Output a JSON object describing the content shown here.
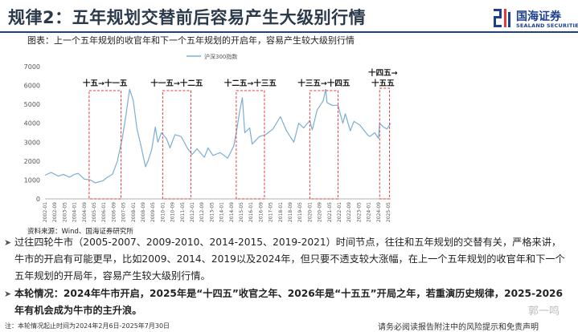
{
  "header": {
    "title": "规律2：五年规划交替前后容易产生大级别行情",
    "logo_cn": "国海证券",
    "logo_en": "SEALAND SECURITIES",
    "brand_color": "#1d3f8f"
  },
  "chart_caption": "图表：上一个五年规划的收官年和下一个五年规划的开启年，容易产生较大级别行情",
  "source": "资料来源：Wind、国海证券研究所",
  "chart_data": {
    "type": "line",
    "legend": "沪深300指数",
    "legend_position": "top-center",
    "line_color": "#7aaed6",
    "ylim": [
      0,
      7000
    ],
    "yticks": [
      "0",
      "1000",
      "2000",
      "3000",
      "4000",
      "5000",
      "6000",
      "7000"
    ],
    "xlim": [
      "2002-01",
      "2025-07"
    ],
    "xticks": [
      "2002-01",
      "2002-09",
      "2003-05",
      "2004-01",
      "2004-09",
      "2005-05",
      "2006-01",
      "2006-09",
      "2007-05",
      "2008-01",
      "2008-09",
      "2009-05",
      "2010-01",
      "2010-09",
      "2011-05",
      "2012-01",
      "2012-09",
      "2013-05",
      "2014-01",
      "2014-09",
      "2015-05",
      "2016-01",
      "2016-09",
      "2017-05",
      "2018-01",
      "2018-09",
      "2019-05",
      "2020-01",
      "2020-09",
      "2021-05",
      "2022-01",
      "2022-09",
      "2023-05",
      "2024-01",
      "2024-09",
      "2025-05"
    ],
    "grid": false,
    "series": [
      {
        "name": "沪深300指数",
        "points": [
          [
            "2002-01",
            1250
          ],
          [
            "2002-06",
            1400
          ],
          [
            "2002-12",
            1200
          ],
          [
            "2003-04",
            1300
          ],
          [
            "2003-09",
            1150
          ],
          [
            "2004-01",
            1300
          ],
          [
            "2004-04",
            1350
          ],
          [
            "2004-09",
            1050
          ],
          [
            "2005-02",
            1000
          ],
          [
            "2005-06",
            850
          ],
          [
            "2005-12",
            950
          ],
          [
            "2006-04",
            1150
          ],
          [
            "2006-08",
            1300
          ],
          [
            "2006-12",
            2000
          ],
          [
            "2007-04",
            3200
          ],
          [
            "2007-07",
            4400
          ],
          [
            "2007-10",
            5800
          ],
          [
            "2008-01",
            5200
          ],
          [
            "2008-04",
            3700
          ],
          [
            "2008-07",
            2900
          ],
          [
            "2008-11",
            1700
          ],
          [
            "2009-01",
            2000
          ],
          [
            "2009-04",
            2600
          ],
          [
            "2009-07",
            3800
          ],
          [
            "2009-09",
            3000
          ],
          [
            "2009-12",
            3500
          ],
          [
            "2010-04",
            3200
          ],
          [
            "2010-07",
            2700
          ],
          [
            "2010-11",
            3400
          ],
          [
            "2011-04",
            3300
          ],
          [
            "2011-09",
            2700
          ],
          [
            "2012-01",
            2350
          ],
          [
            "2012-05",
            2650
          ],
          [
            "2012-11",
            2200
          ],
          [
            "2013-02",
            2700
          ],
          [
            "2013-06",
            2300
          ],
          [
            "2013-12",
            2450
          ],
          [
            "2014-06",
            2150
          ],
          [
            "2014-11",
            2800
          ],
          [
            "2015-01",
            3500
          ],
          [
            "2015-04",
            4700
          ],
          [
            "2015-06",
            5350
          ],
          [
            "2015-08",
            3500
          ],
          [
            "2015-12",
            3750
          ],
          [
            "2016-02",
            2900
          ],
          [
            "2016-08",
            3300
          ],
          [
            "2017-01",
            3400
          ],
          [
            "2017-07",
            3700
          ],
          [
            "2018-01",
            4350
          ],
          [
            "2018-06",
            3600
          ],
          [
            "2018-12",
            3000
          ],
          [
            "2019-04",
            4000
          ],
          [
            "2019-08",
            3750
          ],
          [
            "2020-01",
            4150
          ],
          [
            "2020-03",
            3650
          ],
          [
            "2020-07",
            4700
          ],
          [
            "2020-12",
            5200
          ],
          [
            "2021-02",
            5800
          ],
          [
            "2021-03",
            5100
          ],
          [
            "2021-07",
            4950
          ],
          [
            "2021-12",
            4950
          ],
          [
            "2022-04",
            4000
          ],
          [
            "2022-06",
            4500
          ],
          [
            "2022-10",
            3600
          ],
          [
            "2023-01",
            4100
          ],
          [
            "2023-06",
            3900
          ],
          [
            "2023-12",
            3400
          ],
          [
            "2024-02",
            3300
          ],
          [
            "2024-06",
            3500
          ],
          [
            "2024-09",
            3200
          ],
          [
            "2024-10",
            4000
          ],
          [
            "2025-01",
            3800
          ],
          [
            "2025-04",
            3700
          ],
          [
            "2025-07",
            4000
          ]
        ]
      }
    ],
    "annotations": [
      {
        "label": "十五→十一五",
        "x_start": "2005-01",
        "x_end": "2007-03"
      },
      {
        "label": "十一五→十二五",
        "x_start": "2010-01",
        "x_end": "2011-12"
      },
      {
        "label": "十二五→十三五",
        "x_start": "2015-01",
        "x_end": "2016-12"
      },
      {
        "label": "十三五→十四五",
        "x_start": "2020-01",
        "x_end": "2021-12"
      },
      {
        "label": "十四五→十五五",
        "x_start": "2024-10",
        "x_end": "2025-06"
      }
    ],
    "annotation_color": "#e23b3b"
  },
  "paragraphs": {
    "p1": "过往四轮牛市（2005-2007、2009-2010、2014-2015、2019-2021）时间节点，往往和五年规划的交替有关，严格来讲，牛市的开启有可能更早，比如2009、2014、2019以及2024年，但只要不透支较大涨幅，在上一个五年规划的收官年和下一个五年规划的开局年，容易产生较大级别行情。",
    "p2": "本轮情况：2024年牛市开启，2025年是“十四五”收官之年、2026年是“十五五”开局之年，若重演历史规律，2025-2026年有机会成为牛市的主升浪。"
  },
  "footer": {
    "footnote": "注：本轮情况起止时间为2024年2月6日-2025年7月30日",
    "disclaimer": "请务必阅读报告附注中的风险提示和免责声明",
    "watermark": "郭一鸣"
  }
}
